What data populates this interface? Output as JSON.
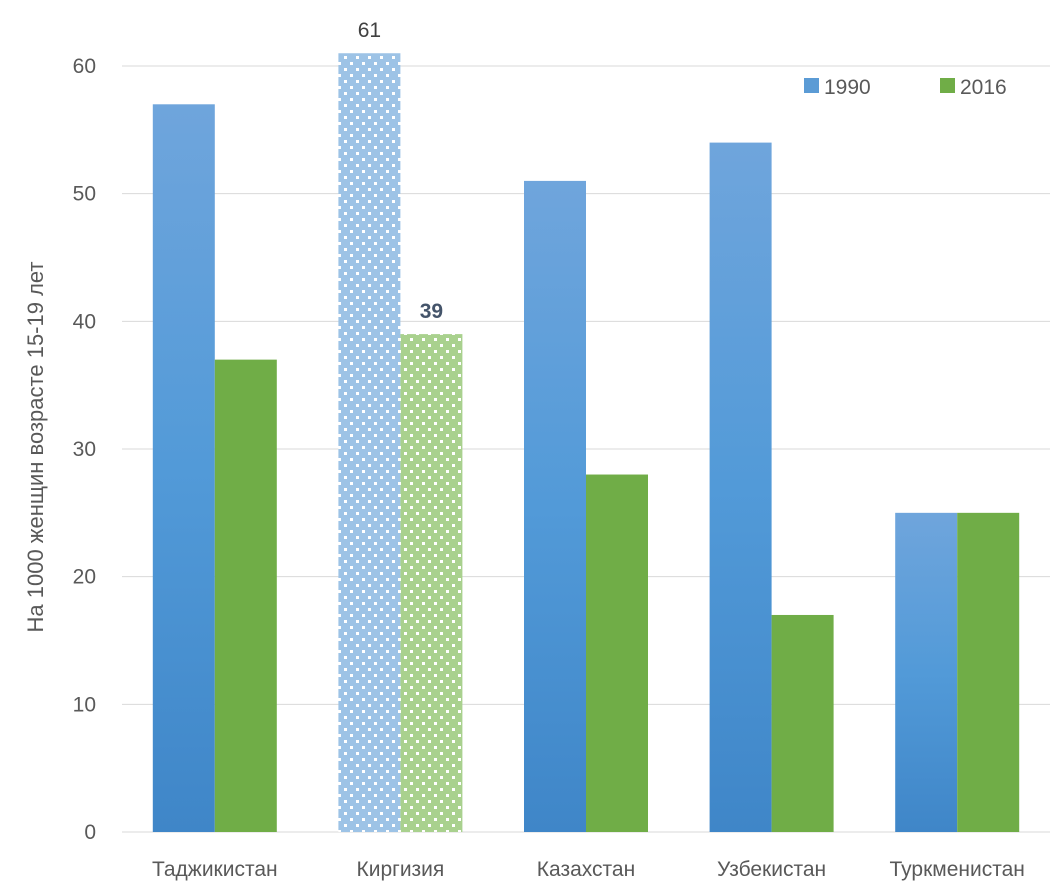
{
  "chart_data": {
    "type": "bar",
    "categories": [
      "Таджикистан",
      "Киргизия",
      "Казахстан",
      "Узбекистан",
      "Туркменистан"
    ],
    "series": [
      {
        "name": "1990",
        "values": [
          57,
          61,
          51,
          54,
          25
        ],
        "color": "#5b9bd5"
      },
      {
        "name": "2016",
        "values": [
          37,
          39,
          28,
          17,
          25
        ],
        "color": "#70ad47"
      }
    ],
    "highlighted_category": "Киргизия",
    "data_labels": [
      {
        "category": "Киргизия",
        "series": "1990",
        "text": "61"
      },
      {
        "category": "Киргизия",
        "series": "2016",
        "text": "39"
      }
    ],
    "ylabel": "На 1000 женщин возрасте 15-19 лет",
    "xlabel": "",
    "ylim": [
      0,
      60
    ],
    "yticks": [
      0,
      10,
      20,
      30,
      40,
      50,
      60
    ],
    "grid": true,
    "legend_position": "top-right"
  }
}
